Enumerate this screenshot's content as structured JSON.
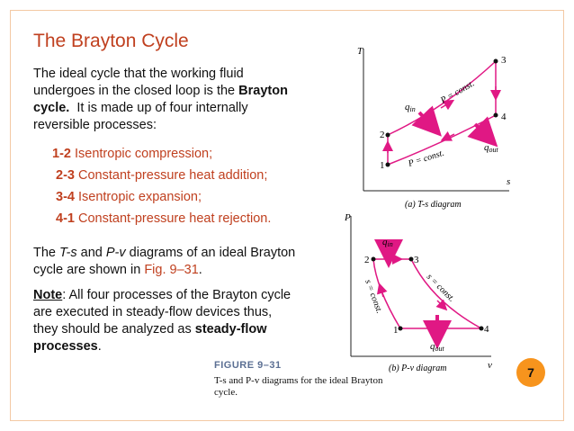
{
  "slide": {
    "title": "The Brayton Cycle",
    "intro_line1": "The ideal cycle that the working fluid",
    "intro_line2a": "undergoes in the closed loop is the ",
    "intro_line2b": "Brayton",
    "intro_line3a": "cycle.",
    "intro_line3b": "  It is made up of four internally",
    "intro_line4": "reversible processes:",
    "steps": [
      {
        "num": "1-2",
        "text": " Isentropic compression;"
      },
      {
        "num": "2-3",
        "text": " Constant-pressure heat addition;"
      },
      {
        "num": "3-4",
        "text": " Isentropic expansion;"
      },
      {
        "num": "4-1",
        "text": " Constant-pressure heat rejection."
      }
    ],
    "para2_a": "The ",
    "para2_ts": "T-s",
    "para2_b": " and ",
    "para2_pv": "P-v",
    "para2_c": " diagrams of an ideal Brayton",
    "para2_line2a": "cycle are shown in ",
    "para2_fig": "Fig. 9–31",
    "para2_line2b": ".",
    "note_label": "Note",
    "note_line1": ": All four processes of the Brayton cycle",
    "note_line2": "are executed in steady-flow devices thus,",
    "note_line3a": "they should be analyzed as ",
    "note_line3b": "steady-flow",
    "note_line4a": "processes",
    "note_line4b": ".",
    "page_number": "7"
  },
  "figure": {
    "label": "FIGURE 9–31",
    "caption": "T-s and P-v diagrams for the ideal Brayton cycle.",
    "ts": {
      "caption": "(a) T-s diagram",
      "axis_y": "T",
      "axis_x": "s",
      "points": [
        "1",
        "2",
        "3",
        "4"
      ],
      "q_in": "q",
      "q_in_sub": "in",
      "q_out": "q",
      "q_out_sub": "out",
      "p_const_top": "P = const.",
      "p_const_bottom": "P = const."
    },
    "pv": {
      "caption": "(b) P-v diagram",
      "axis_y": "P",
      "axis_x": "v",
      "points": [
        "1",
        "2",
        "3",
        "4"
      ],
      "q_in": "q",
      "q_in_sub": "in",
      "q_out": "q",
      "q_out_sub": "out",
      "s_const_left": "s = const.",
      "s_const_right": "s = const."
    }
  },
  "colors": {
    "accent": "#c0401f",
    "badge": "#f7941d",
    "curve": "#e01884",
    "arrow": "#e01884",
    "figure_label": "#5b6f93"
  }
}
